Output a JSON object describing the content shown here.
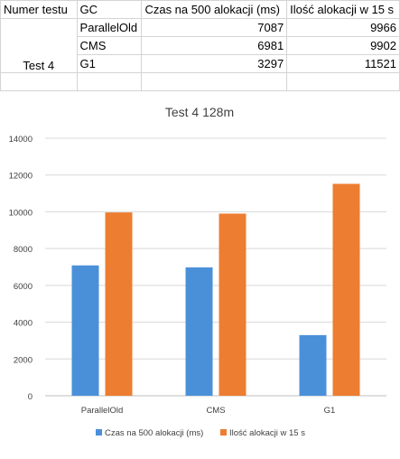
{
  "table": {
    "headers": [
      "Numer testu",
      "GC",
      "Czas na 500 alokacji (ms)",
      "Ilość alokacji w 15 s"
    ],
    "test_name": "Test 4",
    "rows": [
      {
        "gc": "ParallelOld",
        "time": "7087",
        "count": "9966"
      },
      {
        "gc": "CMS",
        "time": "6981",
        "count": "9902"
      },
      {
        "gc": "G1",
        "time": "3297",
        "count": "11521"
      }
    ]
  },
  "chart_data": {
    "type": "bar",
    "title": "Test 4 128m",
    "categories": [
      "ParallelOld",
      "CMS",
      "G1"
    ],
    "series": [
      {
        "name": "Czas na 500 alokacji (ms)",
        "values": [
          7087,
          6981,
          3297
        ],
        "color": "#4a90d9"
      },
      {
        "name": "Ilość alokacji w 15 s",
        "values": [
          9966,
          9902,
          11521
        ],
        "color": "#ed7d31"
      }
    ],
    "ylim": [
      0,
      14000
    ],
    "yticks": [
      0,
      2000,
      4000,
      6000,
      8000,
      10000,
      12000,
      14000
    ],
    "grid": true,
    "legend": "bottom"
  }
}
